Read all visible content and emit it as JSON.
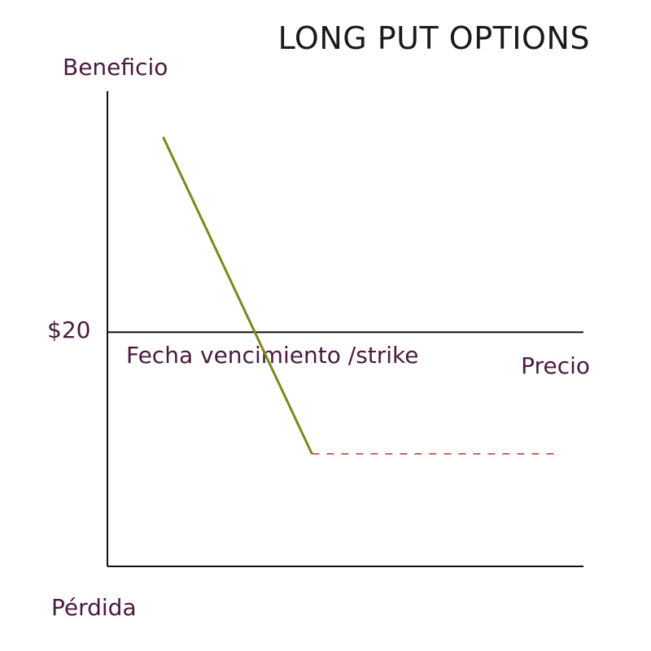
{
  "colors": {
    "axis": "#111111",
    "label": "#4a1a3e",
    "payoff_line": "#7a8a1a",
    "dashed_line": "#c0392b",
    "title": "#1a1a1a"
  },
  "chart_data": {
    "type": "line",
    "title": "LONG PUT OPTIONS",
    "ylabel_top": "Beneficio",
    "ylabel_bottom": "Pérdida",
    "xlabel": "Precio",
    "reference_label": "$20",
    "strike_label": "Fecha vencimiento /strike",
    "grid": false,
    "series": [
      {
        "style": "solid",
        "x": [
          1.5,
          5.5
        ],
        "y": [
          8.5,
          -5.3
        ]
      },
      {
        "style": "dashed",
        "x": [
          5.5,
          12
        ],
        "y": [
          -5.3,
          -5.3
        ]
      }
    ],
    "reference_y": 0,
    "xlim": [
      0,
      12.8
    ],
    "ylim": [
      -10.2,
      10.5
    ]
  }
}
